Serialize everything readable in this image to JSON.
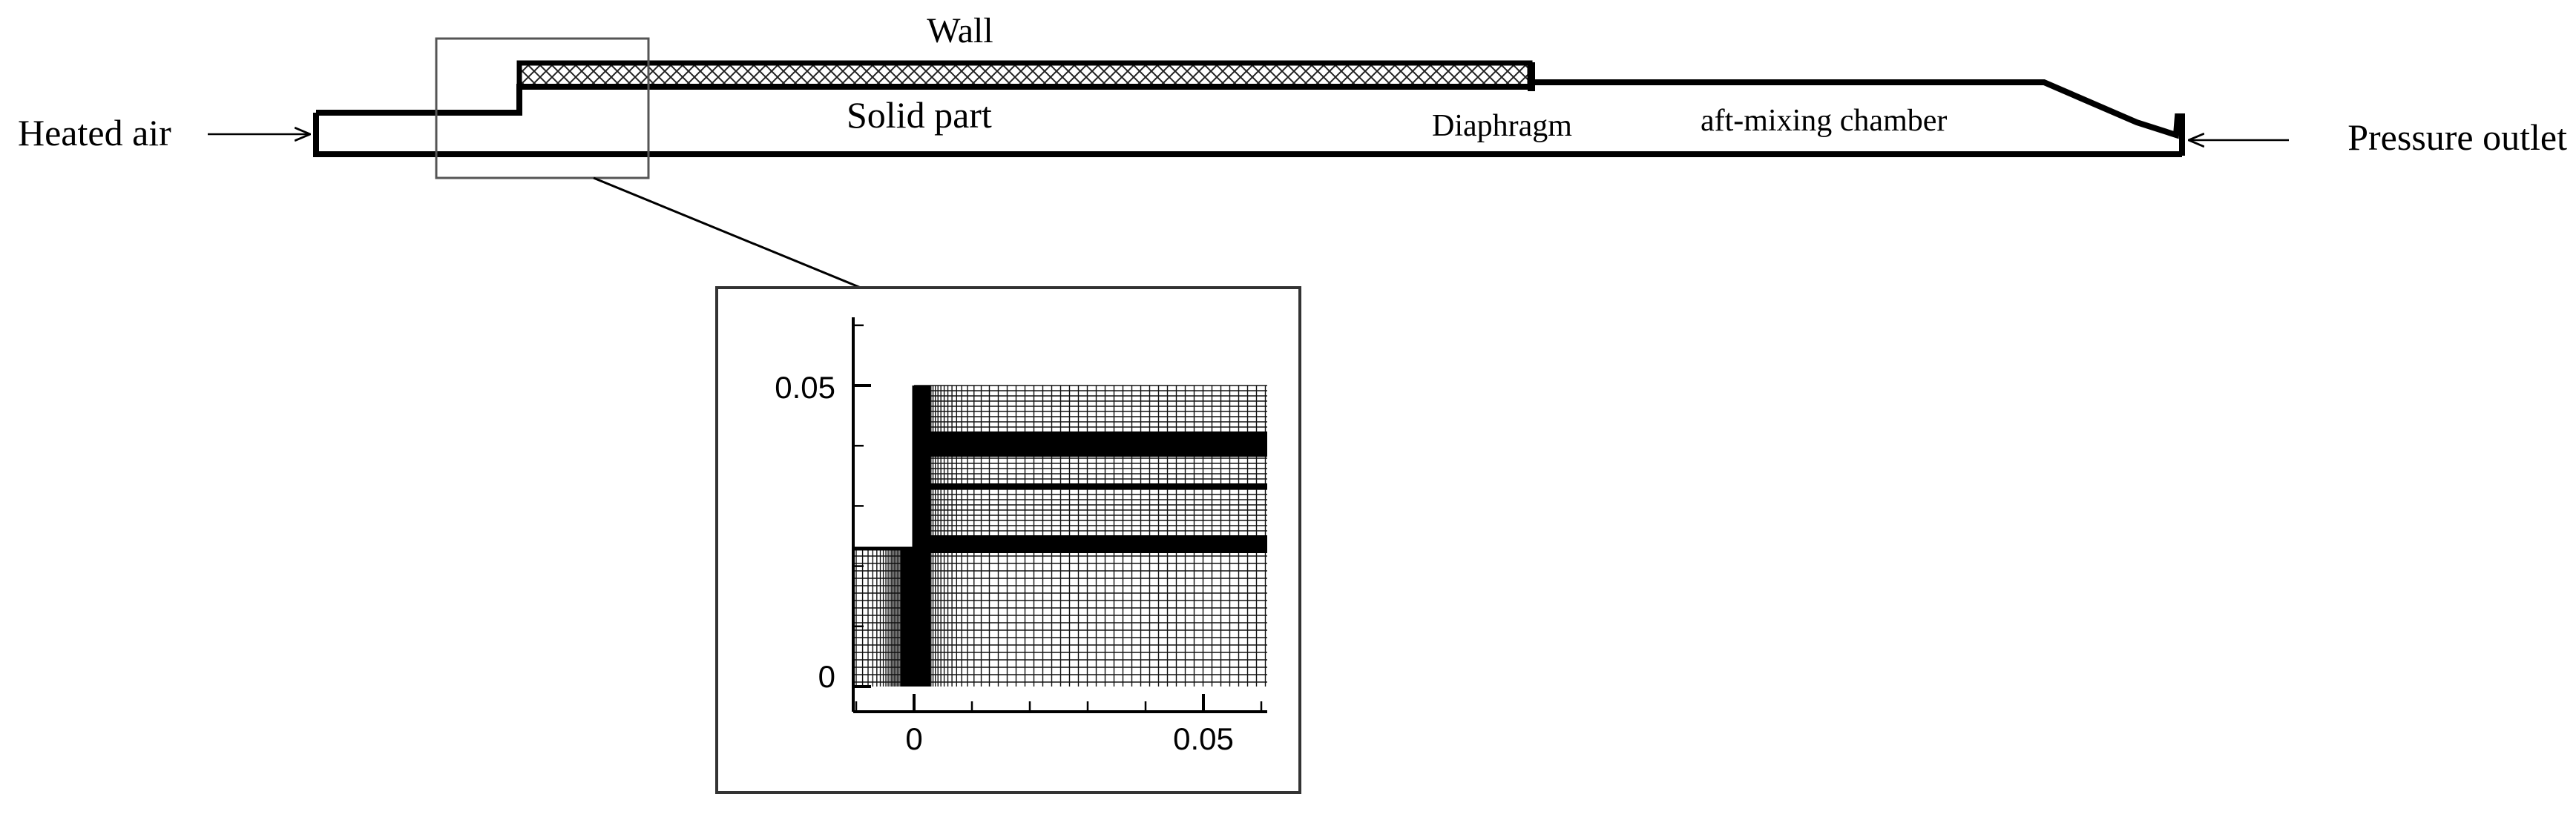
{
  "labels": {
    "wall": "Wall",
    "heated_air": "Heated air",
    "solid_part": "Solid part",
    "diaphragm": "Diaphragm",
    "aft_mixing_chamber": "aft-mixing chamber",
    "pressure_outlet": "Pressure outlet"
  },
  "inset": {
    "x_ticks": [
      "0",
      "0.05"
    ],
    "y_ticks": [
      "0",
      "0.05"
    ]
  }
}
